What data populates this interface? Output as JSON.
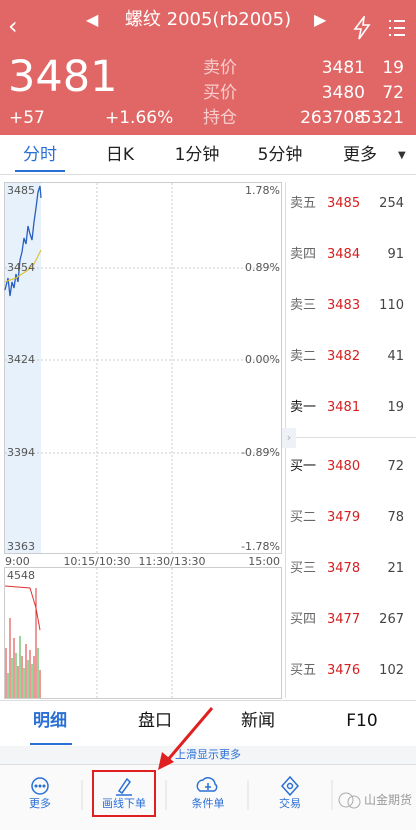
{
  "header": {
    "title": "螺纹 2005(rb2005)",
    "price": "3481",
    "change": "+57",
    "change_pct": "+1.66%",
    "quotes": [
      [
        "卖价",
        "3481",
        "19"
      ],
      [
        "买价",
        "3480",
        "72"
      ],
      [
        "持仓",
        "263708",
        "-5321"
      ]
    ]
  },
  "tabs": [
    "分时",
    "日K",
    "1分钟",
    "5分钟",
    "更多"
  ],
  "chart": {
    "price_labels": [
      "3485",
      "3454",
      "3424",
      "3394",
      "3363"
    ],
    "pct_labels": [
      "1.78%",
      "0.89%",
      "0.00%",
      "-0.89%",
      "-1.78%"
    ],
    "time_labels": [
      "9:00",
      "10:15/10:30",
      "11:30/13:30",
      "15:00"
    ],
    "volume_label": "4548"
  },
  "order_book": [
    [
      "卖五",
      "3485",
      "254"
    ],
    [
      "卖四",
      "3484",
      "91"
    ],
    [
      "卖三",
      "3483",
      "110"
    ],
    [
      "卖二",
      "3482",
      "41"
    ],
    [
      "卖一",
      "3481",
      "19"
    ],
    [
      "买一",
      "3480",
      "72"
    ],
    [
      "买二",
      "3479",
      "78"
    ],
    [
      "买三",
      "3478",
      "21"
    ],
    [
      "买四",
      "3477",
      "267"
    ],
    [
      "买五",
      "3476",
      "102"
    ]
  ],
  "bottom_tabs": [
    "明细",
    "盘口",
    "新闻",
    "F10"
  ],
  "hint": "上滑显示更多",
  "toolbar": [
    "更多",
    "画线下单",
    "条件单",
    "交易"
  ],
  "watermark": "山金期货"
}
